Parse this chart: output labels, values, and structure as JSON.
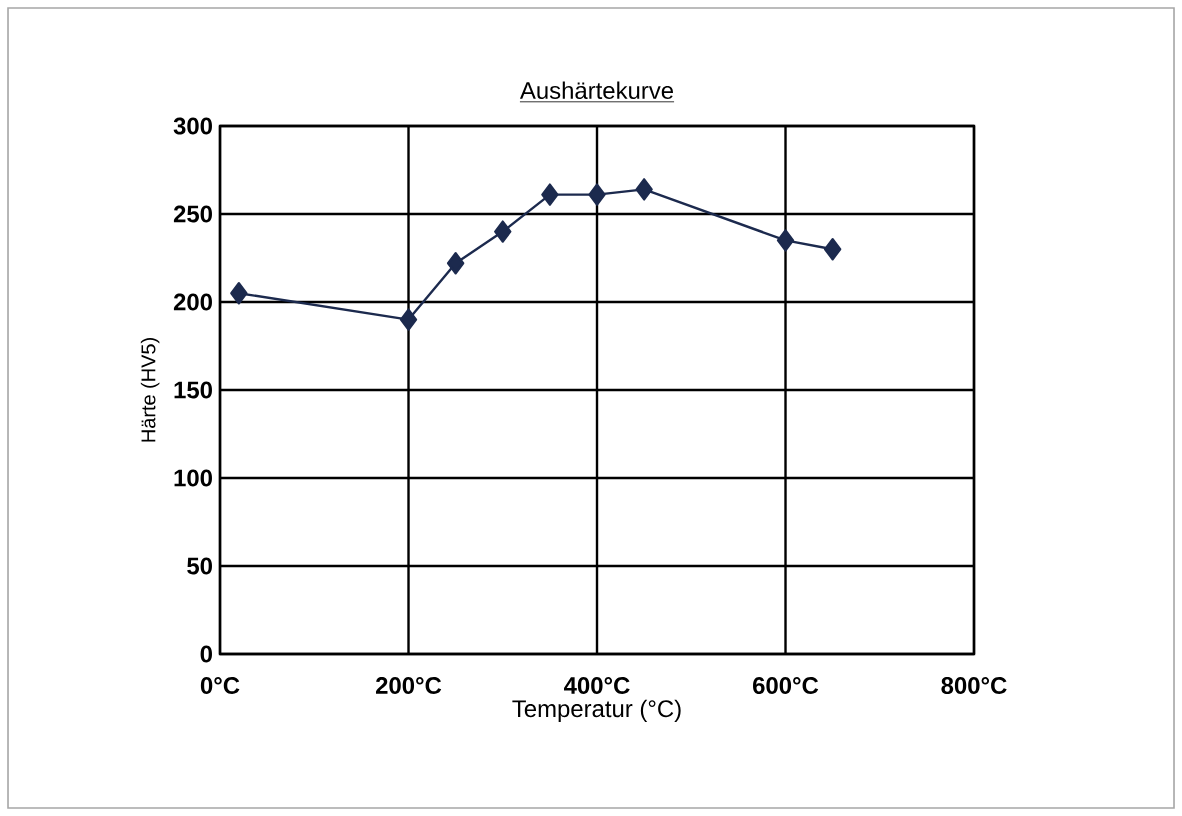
{
  "chart_data": {
    "type": "line",
    "title": "Aushärtekurve",
    "xlabel": "Temperatur (°C)",
    "ylabel": "Härte (HV5)",
    "x": [
      20,
      200,
      250,
      300,
      350,
      400,
      450,
      600,
      650
    ],
    "series": [
      {
        "color": "#1c2a4e",
        "values": [
          205,
          190,
          222,
          240,
          261,
          261,
          264,
          235,
          230
        ]
      }
    ],
    "xlim": [
      0,
      800
    ],
    "xticks": [
      {
        "value": 0,
        "label": "0°C"
      },
      {
        "value": 200,
        "label": "200°C"
      },
      {
        "value": 400,
        "label": "400°C"
      },
      {
        "value": 600,
        "label": "600°C"
      },
      {
        "value": 800,
        "label": "800°C"
      }
    ],
    "ylim": [
      0,
      300
    ],
    "yticks": [
      0,
      50,
      100,
      150,
      200,
      250,
      300
    ],
    "grid": true,
    "marker": "diamond",
    "line_style": "solid"
  }
}
